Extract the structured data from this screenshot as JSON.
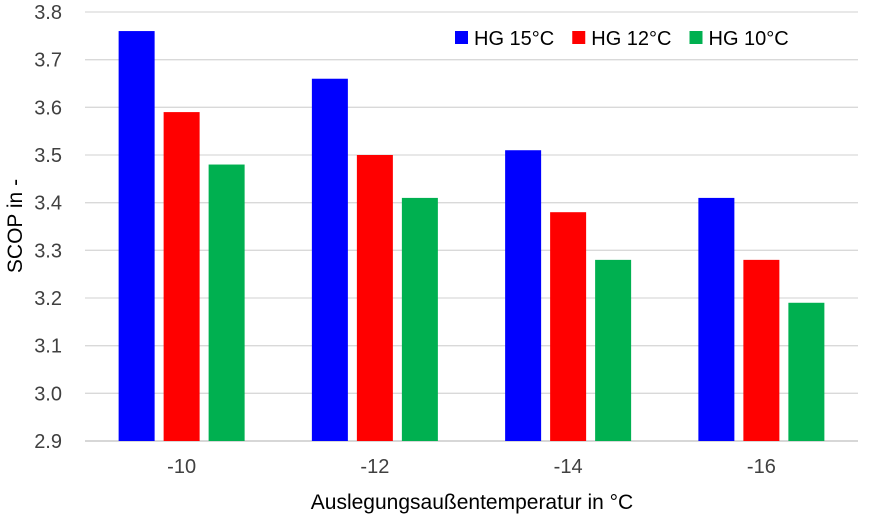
{
  "chart_data": {
    "type": "bar",
    "categories": [
      "-10",
      "-12",
      "-14",
      "-16"
    ],
    "series": [
      {
        "name": "HG 15°C",
        "color": "#0000ff",
        "values": [
          3.76,
          3.66,
          3.51,
          3.41
        ]
      },
      {
        "name": "HG 12°C",
        "color": "#ff0000",
        "values": [
          3.59,
          3.5,
          3.38,
          3.28
        ]
      },
      {
        "name": "HG 10°C",
        "color": "#00b050",
        "values": [
          3.48,
          3.41,
          3.28,
          3.19
        ]
      }
    ],
    "xlabel": "Auslegungsaußentemperatur in °C",
    "ylabel": "SCOP in -",
    "ylim": [
      2.9,
      3.8
    ],
    "yticks": [
      "2.9",
      "3.0",
      "3.1",
      "3.2",
      "3.3",
      "3.4",
      "3.5",
      "3.6",
      "3.7",
      "3.8"
    ],
    "grid": true,
    "legend": "top-right"
  }
}
